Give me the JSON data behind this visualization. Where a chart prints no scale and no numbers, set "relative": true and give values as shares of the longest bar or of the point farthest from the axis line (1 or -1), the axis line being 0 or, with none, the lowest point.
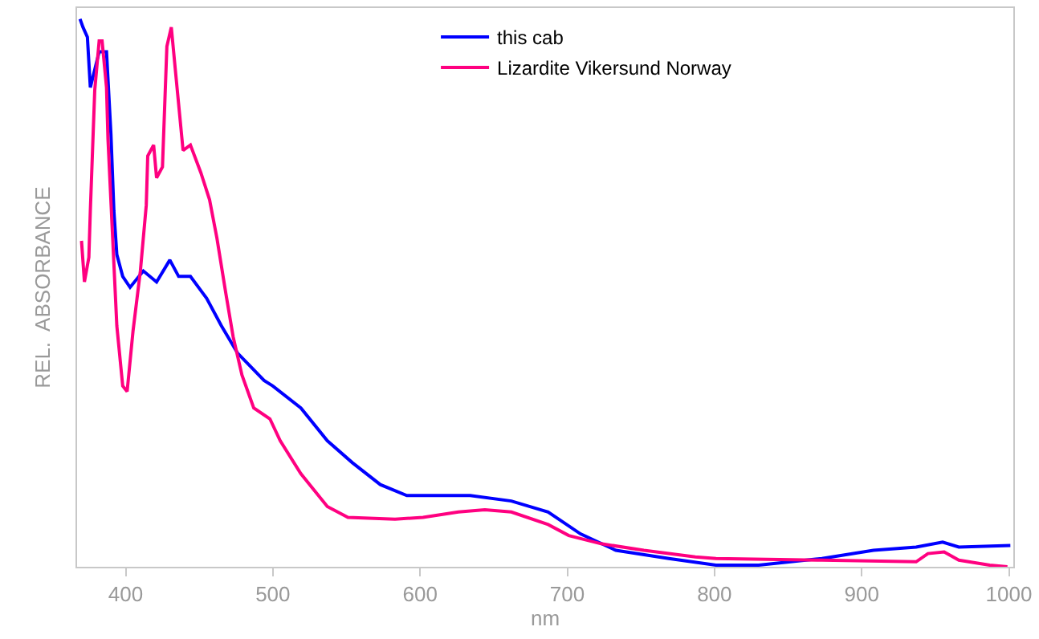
{
  "chart_data": {
    "type": "line",
    "relative": true,
    "xlabel": "nm",
    "ylabel": "REL.  ABSORBANCE",
    "xlim": [
      367,
      1003
    ],
    "xticks": [
      400,
      500,
      600,
      700,
      800,
      900,
      1000
    ],
    "legend": "top",
    "line_style": "solid",
    "marker": "none",
    "series": [
      {
        "name": "this cab",
        "color": "#0000ff",
        "x": [
          369,
          371,
          374,
          376,
          382,
          387,
          390,
          392,
          394,
          398,
          403,
          412,
          421,
          430,
          436,
          444,
          455,
          465,
          476,
          494,
          500,
          519,
          537,
          554,
          573,
          591,
          634,
          662,
          687,
          709,
          733,
          769,
          801,
          830,
          873,
          908,
          937,
          955,
          966,
          1001
        ],
        "values": [
          1.0,
          0.985,
          0.967,
          0.875,
          0.94,
          0.94,
          0.79,
          0.65,
          0.57,
          0.53,
          0.51,
          0.54,
          0.52,
          0.56,
          0.53,
          0.53,
          0.49,
          0.44,
          0.39,
          0.34,
          0.33,
          0.29,
          0.23,
          0.19,
          0.15,
          0.13,
          0.13,
          0.12,
          0.1,
          0.06,
          0.03,
          0.015,
          0.003,
          0.003,
          0.015,
          0.03,
          0.036,
          0.045,
          0.036,
          0.039
        ]
      },
      {
        "name": "Lizardite Vikersund Norway",
        "color": "#ff0080",
        "x": [
          370,
          372,
          375,
          376,
          379,
          382,
          384,
          387,
          388,
          391,
          394,
          398,
          401,
          405,
          410,
          414,
          415,
          419,
          421,
          425,
          428,
          431,
          434,
          439,
          444,
          451,
          457,
          462,
          468,
          473,
          479,
          487,
          498,
          505,
          519,
          537,
          551,
          583,
          602,
          626,
          644,
          662,
          687,
          701,
          723,
          752,
          787,
          801,
          873,
          937,
          945,
          956,
          966,
          987,
          999
        ],
        "values": [
          0.595,
          0.52,
          0.565,
          0.65,
          0.87,
          0.96,
          0.96,
          0.875,
          0.78,
          0.61,
          0.44,
          0.33,
          0.32,
          0.43,
          0.54,
          0.66,
          0.75,
          0.77,
          0.71,
          0.73,
          0.95,
          0.985,
          0.9,
          0.76,
          0.77,
          0.72,
          0.67,
          0.6,
          0.5,
          0.42,
          0.35,
          0.29,
          0.27,
          0.23,
          0.17,
          0.11,
          0.09,
          0.087,
          0.09,
          0.1,
          0.104,
          0.1,
          0.077,
          0.057,
          0.042,
          0.03,
          0.018,
          0.015,
          0.012,
          0.009,
          0.024,
          0.027,
          0.012,
          0.003,
          0.0
        ]
      }
    ]
  }
}
